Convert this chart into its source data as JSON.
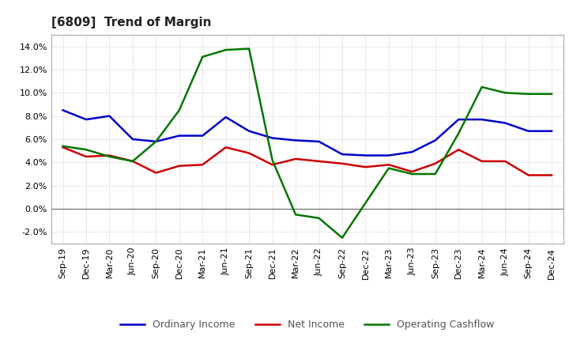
{
  "title": "[6809]  Trend of Margin",
  "x_labels": [
    "Sep-19",
    "Dec-19",
    "Mar-20",
    "Jun-20",
    "Sep-20",
    "Dec-20",
    "Mar-21",
    "Jun-21",
    "Sep-21",
    "Dec-21",
    "Mar-22",
    "Jun-22",
    "Sep-22",
    "Dec-22",
    "Mar-23",
    "Jun-23",
    "Sep-23",
    "Dec-23",
    "Mar-24",
    "Jun-24",
    "Sep-24",
    "Dec-24"
  ],
  "ordinary_income": [
    8.5,
    7.7,
    8.0,
    6.0,
    5.8,
    6.3,
    6.3,
    7.9,
    6.7,
    6.1,
    5.9,
    5.8,
    4.7,
    4.6,
    4.6,
    4.9,
    5.9,
    7.7,
    7.7,
    7.4,
    6.7,
    6.7
  ],
  "net_income": [
    5.3,
    4.5,
    4.6,
    4.1,
    3.1,
    3.7,
    3.8,
    5.3,
    4.8,
    3.8,
    4.3,
    4.1,
    3.9,
    3.6,
    3.8,
    3.2,
    3.9,
    5.1,
    4.1,
    4.1,
    2.9,
    2.9
  ],
  "operating_cashflow": [
    5.4,
    5.1,
    4.5,
    4.1,
    5.8,
    8.5,
    13.1,
    13.7,
    13.8,
    4.2,
    -0.5,
    -0.8,
    -2.5,
    0.5,
    3.5,
    3.0,
    3.0,
    6.5,
    10.5,
    10.0,
    9.9,
    9.9
  ],
  "ordinary_income_color": "#0000cc",
  "net_income_color": "#cc0000",
  "operating_cashflow_color": "#007700",
  "background_color": "#ffffff",
  "plot_bg_color": "#ffffff",
  "grid_color": "#bbbbbb",
  "ylim": [
    -3.0,
    15.0
  ],
  "yticks": [
    -2.0,
    0.0,
    2.0,
    4.0,
    6.0,
    8.0,
    10.0,
    12.0,
    14.0
  ],
  "title_fontsize": 11,
  "legend_fontsize": 9,
  "tick_fontsize": 8,
  "line_width": 1.8
}
